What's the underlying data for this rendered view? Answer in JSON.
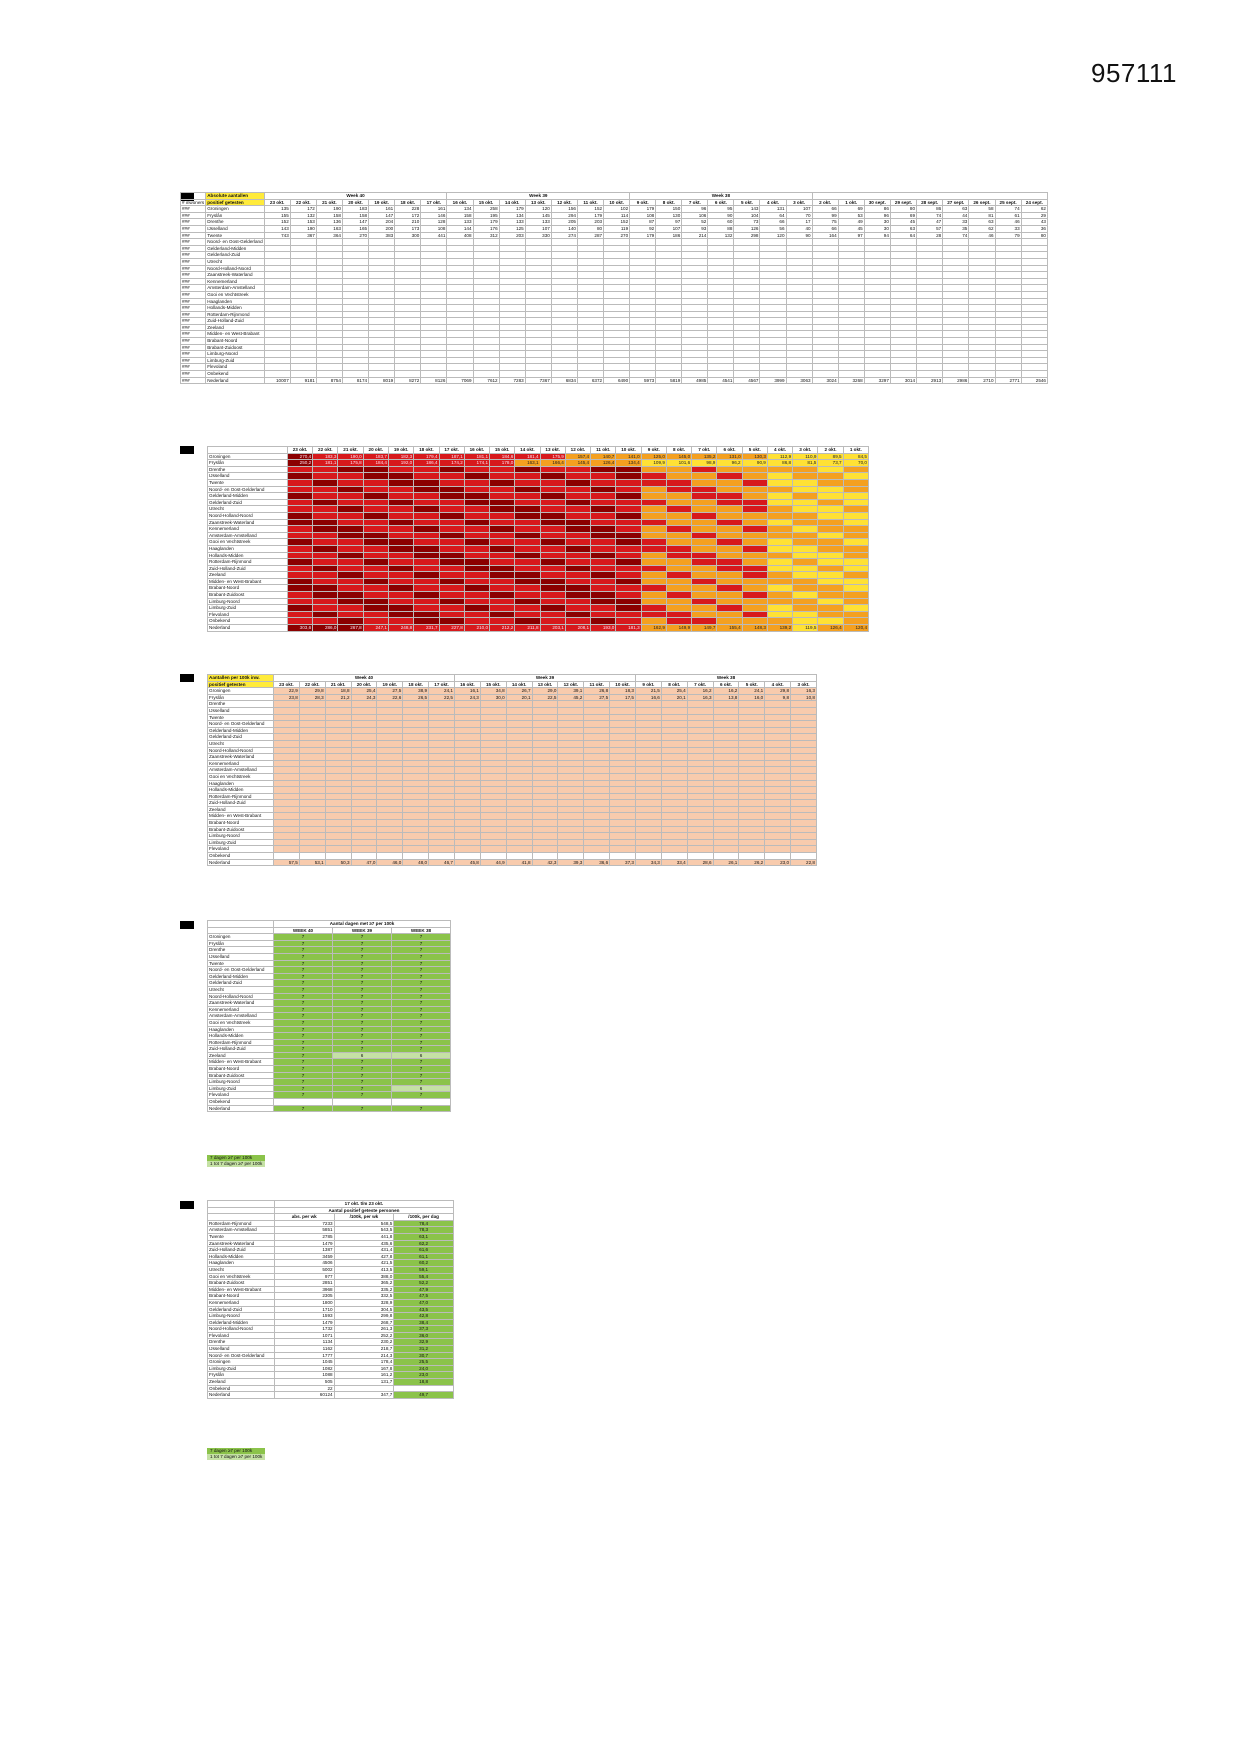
{
  "doc_id": "957111",
  "regions": [
    "Groningen",
    "Fryslân",
    "Drenthe",
    "IJsselland",
    "Twente",
    "Noord- en Oost-Gelderland",
    "Gelderland-Midden",
    "Gelderland-Zuid",
    "Utrecht",
    "Noord-Holland-Noord",
    "Zaanstreek-Waterland",
    "Kennemerland",
    "Amsterdam-Amstelland",
    "Gooi en Vechtstreek",
    "Haaglanden",
    "Hollands-Midden",
    "Rotterdam-Rijnmond",
    "Zuid-Holland-Zuid",
    "Zeeland",
    "Midden- en West-Brabant",
    "Brabant-Noord",
    "Brabant-Zuidoost",
    "Limburg-Noord",
    "Limburg-Zuid",
    "Flevoland",
    "Onbekend",
    "Nederland"
  ],
  "table1": {
    "title": "Absolute aantallen",
    "subtitle": "positief getesten",
    "side_label": "# inwoners",
    "weeks": [
      "Week 40",
      "Week 39",
      "Week 38"
    ],
    "dates": [
      "23 okt.",
      "22 okt.",
      "21 okt.",
      "20 okt.",
      "19 okt.",
      "18 okt.",
      "17 okt.",
      "16 okt.",
      "15 okt.",
      "14 okt.",
      "13 okt.",
      "12 okt.",
      "11 okt.",
      "10 okt.",
      "9 okt.",
      "8 okt.",
      "7 okt.",
      "6 okt.",
      "5 okt.",
      "4 okt.",
      "3 okt.",
      "2 okt.",
      "1 okt.",
      "30 sept.",
      "29 sept.",
      "28 sept.",
      "27 sept.",
      "26 sept.",
      "25 sept.",
      "24 sept."
    ],
    "row_marker": "###",
    "rows": [
      [
        "135",
        "172",
        "190",
        "183",
        "161",
        "228",
        "161",
        "134",
        "258",
        "179",
        "120",
        "156",
        "152",
        "102",
        "179",
        "150",
        "96",
        "95",
        "143",
        "131",
        "107",
        "66",
        "69",
        "86",
        "80",
        "86",
        "63",
        "58",
        "74",
        "62"
      ],
      [
        "155",
        "132",
        "158",
        "158",
        "147",
        "172",
        "146",
        "158",
        "195",
        "134",
        "145",
        "294",
        "179",
        "114",
        "108",
        "130",
        "106",
        "90",
        "104",
        "64",
        "70",
        "99",
        "53",
        "96",
        "69",
        "74",
        "44",
        "81",
        "61",
        "29"
      ],
      [
        "152",
        "153",
        "136",
        "147",
        "204",
        "210",
        "128",
        "133",
        "179",
        "133",
        "133",
        "205",
        "203",
        "152",
        "87",
        "97",
        "52",
        "60",
        "73",
        "66",
        "17",
        "75",
        "49",
        "30",
        "45",
        "47",
        "33",
        "63",
        "46",
        "43"
      ],
      [
        "143",
        "190",
        "163",
        "165",
        "200",
        "173",
        "108",
        "144",
        "176",
        "125",
        "107",
        "140",
        "80",
        "119",
        "92",
        "107",
        "93",
        "88",
        "126",
        "56",
        "40",
        "66",
        "45",
        "30",
        "63",
        "57",
        "35",
        "62",
        "33",
        "36"
      ],
      [
        "743",
        "367",
        "364",
        "270",
        "383",
        "300",
        "441",
        "408",
        "312",
        "203",
        "330",
        "274",
        "287",
        "270",
        "179",
        "186",
        "214",
        "132",
        "298",
        "120",
        "90",
        "164",
        "97",
        "94",
        "64",
        "28",
        "74",
        "46",
        "79",
        "80"
      ]
    ],
    "totals": [
      "10007",
      "9181",
      "8754",
      "8174",
      "8019",
      "8272",
      "8126",
      "7069",
      "7612",
      "7283",
      "7367",
      "6834",
      "6372",
      "6490",
      "5973",
      "5819",
      "4985",
      "4541",
      "4567",
      "3999",
      "3063",
      "3024",
      "3268",
      "3297",
      "3014",
      "2913",
      "2986",
      "2710",
      "2771",
      "2546"
    ]
  },
  "table2": {
    "dates": [
      "23 okt.",
      "22 okt.",
      "21 okt.",
      "20 okt.",
      "19 okt.",
      "18 okt.",
      "17 okt.",
      "16 okt.",
      "15 okt.",
      "14 okt.",
      "13 okt.",
      "12 okt.",
      "11 okt.",
      "10 okt.",
      "9 okt.",
      "8 okt.",
      "7 okt.",
      "6 okt.",
      "5 okt.",
      "4 okt.",
      "3 okt.",
      "2 okt.",
      "1 okt."
    ],
    "rows": [
      [
        "270,4",
        "183,3",
        "190,0",
        "183,7",
        "182,3",
        "179,4",
        "187,1",
        "181,1",
        "184,6",
        "181,4",
        "175,9",
        "157,4",
        "140,7",
        "141,0",
        "125,0",
        "145,0",
        "135,2",
        "131,0",
        "130,3",
        "112,9",
        "110,9",
        "89,5",
        "84,5"
      ],
      [
        "250,2",
        "181,1",
        "175,8",
        "184,4",
        "192,0",
        "186,4",
        "174,2",
        "174,1",
        "178,0",
        "163,1",
        "166,4",
        "145,4",
        "126,4",
        "134,4",
        "109,9",
        "101,6",
        "98,9",
        "96,2",
        "90,9",
        "86,8",
        "81,5",
        "73,7",
        "70,0"
      ]
    ],
    "totals": [
      "303,6",
      "286,0",
      "267,8",
      "247,1",
      "248,8",
      "231,7",
      "227,8",
      "210,0",
      "212,2",
      "211,8",
      "203,1",
      "208,1",
      "193,0",
      "181,3",
      "162,9",
      "149,9",
      "149,7",
      "155,4",
      "148,3",
      "139,2",
      "119,5",
      "126,4",
      "120,4"
    ]
  },
  "table3": {
    "title": "Aantallen per 100k inw.",
    "subtitle": "positief getesten",
    "weeks": [
      "Week 40",
      "Week 39",
      "Week 38"
    ],
    "dates": [
      "23 okt.",
      "22 okt.",
      "21 okt.",
      "20 okt.",
      "19 okt.",
      "18 okt.",
      "17 okt.",
      "16 okt.",
      "15 okt.",
      "14 okt.",
      "13 okt.",
      "12 okt.",
      "11 okt.",
      "10 okt.",
      "9 okt.",
      "8 okt.",
      "7 okt.",
      "6 okt.",
      "5 okt.",
      "4 okt.",
      "3 okt."
    ],
    "rows": [
      [
        "22,9",
        "29,8",
        "18,8",
        "25,4",
        "27,5",
        "38,9",
        "24,1",
        "16,1",
        "34,8",
        "26,7",
        "29,0",
        "39,1",
        "26,8",
        "18,3",
        "21,5",
        "25,4",
        "16,2",
        "16,2",
        "24,1",
        "29,8",
        "16,3"
      ],
      [
        "23,8",
        "28,3",
        "21,2",
        "24,3",
        "22,6",
        "26,5",
        "22,5",
        "24,3",
        "30,0",
        "20,1",
        "22,5",
        "45,2",
        "27,5",
        "17,5",
        "16,6",
        "20,1",
        "16,3",
        "13,8",
        "16,0",
        "9,8",
        "10,8"
      ]
    ],
    "totals": [
      "57,5",
      "53,1",
      "50,3",
      "47,0",
      "46,0",
      "48,0",
      "46,7",
      "45,8",
      "44,9",
      "41,8",
      "42,3",
      "39,3",
      "36,6",
      "37,3",
      "34,3",
      "33,4",
      "28,6",
      "26,1",
      "26,2",
      "23,0",
      "22,8"
    ]
  },
  "table4": {
    "title": "Aantal dagen met ≥7 per 100k",
    "cols": [
      "WEEK 40",
      "WEEK 39",
      "WEEK 38"
    ],
    "values": [
      "7",
      "6"
    ],
    "legend": [
      "7 dagen ≥7 per 100k",
      "1 tot 7 dagen ≥7 per 100k"
    ]
  },
  "table5": {
    "title": "17 okt. t/m 23 okt.",
    "subtitle": "Aantal positief geteste personen",
    "cols": [
      "abs. per wk",
      "/100k, per wk",
      "/100k, per dag"
    ],
    "rows": [
      [
        "Rotterdam-Rijnmond",
        "7233",
        "548,5",
        "78,4"
      ],
      [
        "Amsterdam-Amstelland",
        "5851",
        "543,5",
        "78,3"
      ],
      [
        "Twente",
        "2785",
        "441,8",
        "63,1"
      ],
      [
        "Zaanstreek-Waterland",
        "1479",
        "435,6",
        "62,2"
      ],
      [
        "Zuid-Holland-Zuid",
        "1387",
        "431,4",
        "61,6"
      ],
      [
        "Hollands-Midden",
        "3459",
        "427,8",
        "61,1"
      ],
      [
        "Haaglanden",
        "4506",
        "421,5",
        "60,2"
      ],
      [
        "Utrecht",
        "5002",
        "413,5",
        "59,1"
      ],
      [
        "Gooi en Vechtstreek",
        "977",
        "388,0",
        "55,4"
      ],
      [
        "Brabant-Zuidoost",
        "2851",
        "365,2",
        "52,2"
      ],
      [
        "Midden- en West-Brabant",
        "3968",
        "335,2",
        "47,9"
      ],
      [
        "Brabant-Noord",
        "2305",
        "332,5",
        "47,5"
      ],
      [
        "Kennemerland",
        "1800",
        "328,9",
        "47,0"
      ],
      [
        "Gelderland-Zuid",
        "1710",
        "304,5",
        "43,5"
      ],
      [
        "Limburg-Noord",
        "1593",
        "299,8",
        "42,8"
      ],
      [
        "Gelderland-Midden",
        "1479",
        "268,7",
        "38,4"
      ],
      [
        "Noord-Holland-Noord",
        "1732",
        "261,3",
        "37,3"
      ],
      [
        "Flevoland",
        "1071",
        "252,2",
        "36,0"
      ],
      [
        "Drenthe",
        "1134",
        "230,2",
        "32,9"
      ],
      [
        "IJsselland",
        "1162",
        "218,7",
        "31,2"
      ],
      [
        "Noord- en Oost-Gelderland",
        "1777",
        "214,3",
        "30,7"
      ],
      [
        "Groningen",
        "1045",
        "178,4",
        "25,5"
      ],
      [
        "Limburg-Zuid",
        "1082",
        "167,8",
        "24,0"
      ],
      [
        "Fryslân",
        "1088",
        "161,2",
        "23,0"
      ],
      [
        "Zeeland",
        "505",
        "131,7",
        "18,8"
      ],
      [
        "Onbekend",
        "22",
        "",
        ""
      ],
      [
        "Nederland",
        "60124",
        "347,7",
        "49,7"
      ]
    ],
    "legend": [
      "7 dagen ≥7 per 100k",
      "1 tot 7 dagen ≥7 per 100k"
    ]
  },
  "colors": {
    "heat_dark": "#8b0000",
    "heat_red": "#d7191c",
    "heat_orange": "#f4a020",
    "heat_yellow": "#ffe135",
    "title_yellow": "#ffeb3b",
    "green": "#8bc34a",
    "light_green": "#c5e1a5",
    "pink": "#f8cbad"
  }
}
